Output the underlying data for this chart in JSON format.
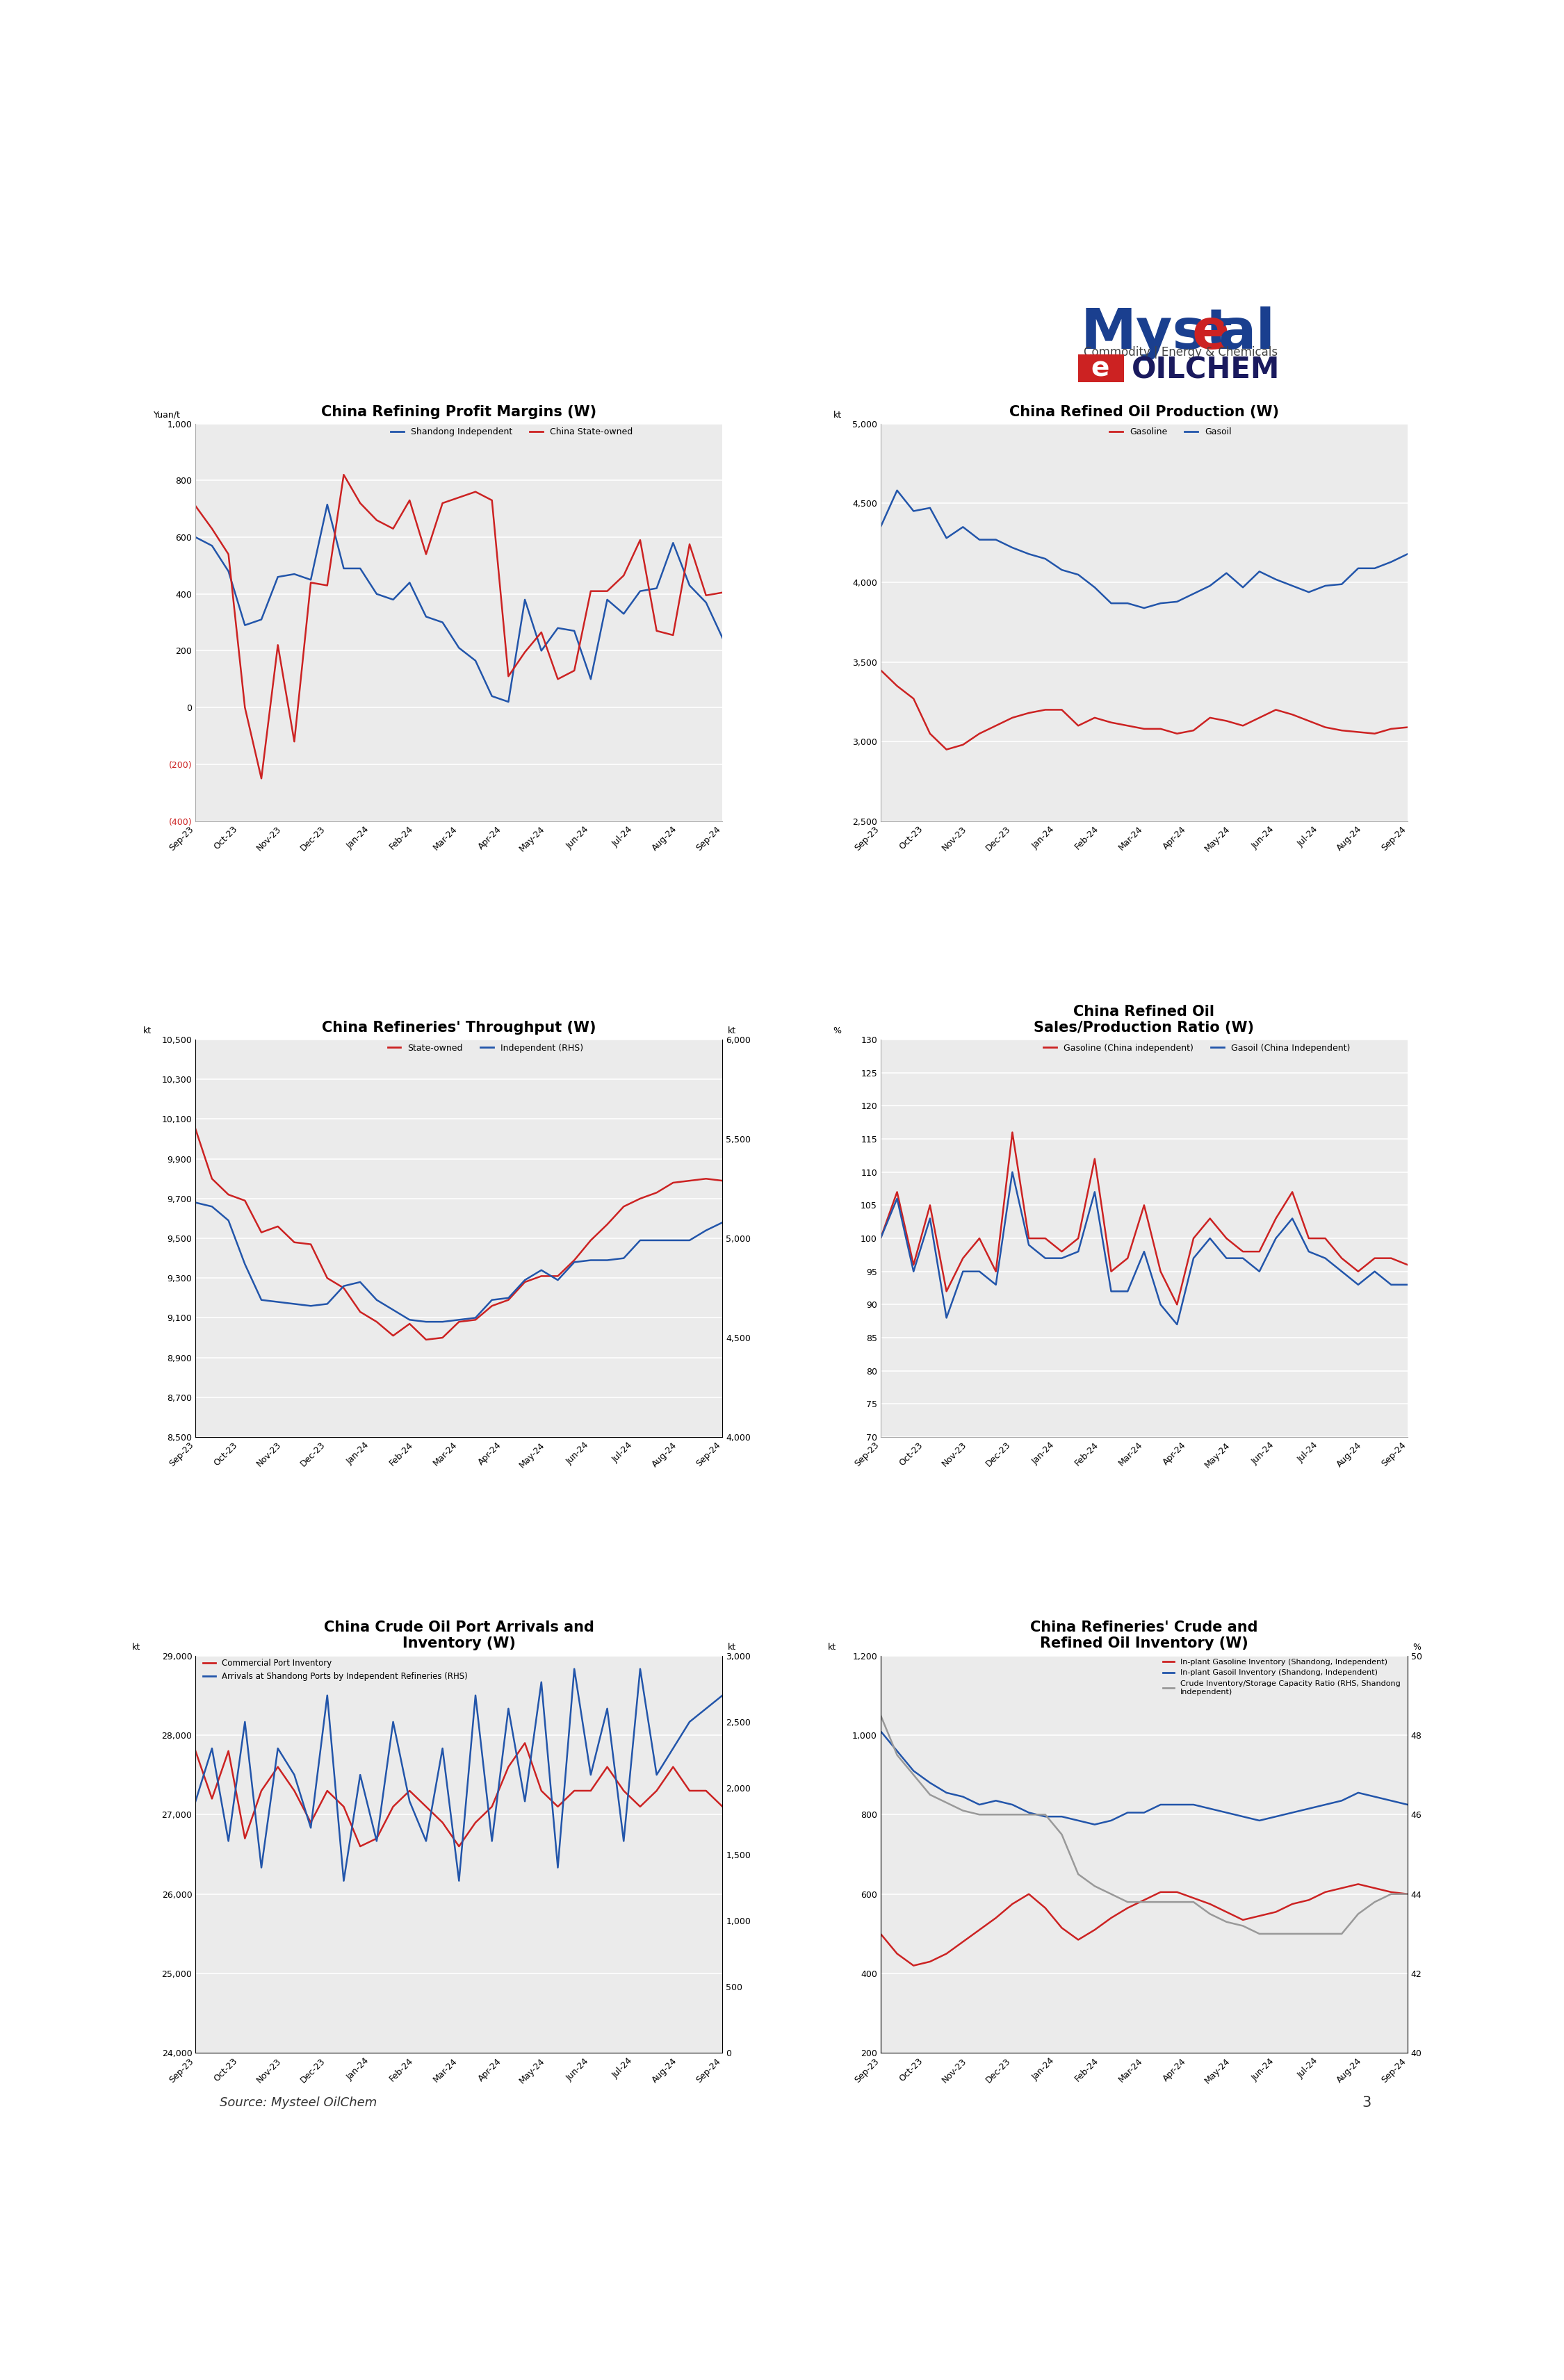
{
  "chart1": {
    "title": "China Refining Profit Margins (W)",
    "ylabel": "Yuan/t",
    "ylim": [
      -400,
      1000
    ],
    "yticks": [
      -400,
      -200,
      0,
      200,
      400,
      600,
      800,
      1000
    ],
    "ytick_labels": [
      "(400)",
      "(200)",
      "0",
      "200",
      "400",
      "600",
      "800",
      "1,000"
    ],
    "series": {
      "Shandong Independent": {
        "color": "#2255AA",
        "data": [
          600,
          570,
          480,
          290,
          310,
          460,
          470,
          450,
          715,
          490,
          490,
          400,
          380,
          440,
          320,
          300,
          210,
          165,
          40,
          20,
          380,
          200,
          280,
          270,
          100,
          380,
          330,
          410,
          420,
          580,
          430,
          370,
          245
        ]
      },
      "China State-owned": {
        "color": "#CC2222",
        "data": [
          710,
          630,
          540,
          0,
          -250,
          220,
          -120,
          440,
          430,
          820,
          720,
          660,
          630,
          730,
          540,
          720,
          740,
          760,
          730,
          110,
          195,
          265,
          100,
          130,
          410,
          410,
          465,
          590,
          270,
          255,
          575,
          395,
          405
        ]
      }
    },
    "x_labels": [
      "Sep-23",
      "Oct-23",
      "Nov-23",
      "Dec-23",
      "Jan-24",
      "Feb-24",
      "Mar-24",
      "Apr-24",
      "May-24",
      "Jun-24",
      "Jul-24",
      "Aug-24",
      "Sep-24"
    ],
    "n_points": 33
  },
  "chart2": {
    "title": "China Refined Oil Production (W)",
    "ylabel": "kt",
    "ylim": [
      2500,
      5000
    ],
    "yticks": [
      2500,
      3000,
      3500,
      4000,
      4500,
      5000
    ],
    "ytick_labels": [
      "2,500",
      "3,000",
      "3,500",
      "4,000",
      "4,500",
      "5,000"
    ],
    "series": {
      "Gasoline": {
        "color": "#CC2222",
        "data": [
          3450,
          3350,
          3270,
          3050,
          2950,
          2980,
          3050,
          3100,
          3150,
          3180,
          3200,
          3200,
          3100,
          3150,
          3120,
          3100,
          3080,
          3080,
          3050,
          3070,
          3150,
          3130,
          3100,
          3150,
          3200,
          3170,
          3130,
          3090,
          3070,
          3060,
          3050,
          3080,
          3090
        ]
      },
      "Gasoil": {
        "color": "#2255AA",
        "data": [
          4350,
          4580,
          4450,
          4470,
          4280,
          4350,
          4270,
          4270,
          4220,
          4180,
          4150,
          4080,
          4050,
          3970,
          3870,
          3870,
          3840,
          3870,
          3880,
          3930,
          3980,
          4060,
          3970,
          4070,
          4020,
          3980,
          3940,
          3980,
          3990,
          4090,
          4090,
          4130,
          4180
        ]
      }
    },
    "x_labels": [
      "Sep-23",
      "Oct-23",
      "Nov-23",
      "Dec-23",
      "Jan-24",
      "Feb-24",
      "Mar-24",
      "Apr-24",
      "May-24",
      "Jun-24",
      "Jul-24",
      "Aug-24",
      "Sep-24"
    ],
    "n_points": 33
  },
  "chart3": {
    "title": "China Refineries' Throughput (W)",
    "ylabel_left": "kt",
    "ylabel_right": "kt",
    "ylim_left": [
      8500,
      10500
    ],
    "ylim_right": [
      4000,
      6000
    ],
    "yticks_left": [
      8500,
      8700,
      8900,
      9100,
      9300,
      9500,
      9700,
      9900,
      10100,
      10300,
      10500
    ],
    "ytick_labels_left": [
      "8,500",
      "8,700",
      "8,900",
      "9,100",
      "9,300",
      "9,500",
      "9,700",
      "9,900",
      "10,100",
      "10,300",
      "10,500"
    ],
    "yticks_right": [
      4000,
      4500,
      5000,
      5500,
      6000
    ],
    "ytick_labels_right": [
      "4,000",
      "4,500",
      "5,000",
      "5,500",
      "6,000"
    ],
    "series": {
      "State-owned": {
        "color": "#CC2222",
        "data": [
          10050,
          9800,
          9720,
          9690,
          9530,
          9560,
          9480,
          9470,
          9300,
          9250,
          9130,
          9080,
          9010,
          9070,
          8990,
          9000,
          9080,
          9090,
          9160,
          9190,
          9280,
          9310,
          9310,
          9390,
          9490,
          9570,
          9660,
          9700,
          9730,
          9780,
          9790,
          9800,
          9790
        ]
      },
      "Independent (RHS)": {
        "color": "#2255AA",
        "data": [
          5180,
          5160,
          5090,
          4870,
          4690,
          4680,
          4670,
          4660,
          4670,
          4760,
          4780,
          4690,
          4640,
          4590,
          4580,
          4580,
          4590,
          4600,
          4690,
          4700,
          4790,
          4840,
          4790,
          4880,
          4890,
          4890,
          4900,
          4990,
          4990,
          4990,
          4990,
          5040,
          5080
        ]
      }
    },
    "x_labels": [
      "Sep-23",
      "Oct-23",
      "Nov-23",
      "Dec-23",
      "Jan-24",
      "Feb-24",
      "Mar-24",
      "Apr-24",
      "May-24",
      "Jun-24",
      "Jul-24",
      "Aug-24",
      "Sep-24"
    ],
    "n_points": 33
  },
  "chart4": {
    "title": "China Refined Oil\nSales/Production Ratio (W)",
    "ylabel": "%",
    "ylim": [
      70,
      130
    ],
    "yticks": [
      70,
      75,
      80,
      85,
      90,
      95,
      100,
      105,
      110,
      115,
      120,
      125,
      130
    ],
    "ytick_labels": [
      "70",
      "75",
      "80",
      "85",
      "90",
      "95",
      "100",
      "105",
      "110",
      "115",
      "120",
      "125",
      "130"
    ],
    "series": {
      "Gasoline (China independent)": {
        "color": "#CC2222",
        "data": [
          100,
          107,
          96,
          105,
          92,
          97,
          100,
          95,
          116,
          100,
          100,
          98,
          100,
          112,
          95,
          97,
          105,
          95,
          90,
          100,
          103,
          100,
          98,
          98,
          103,
          107,
          100,
          100,
          97,
          95,
          97,
          97,
          96
        ]
      },
      "Gasoil (China Independent)": {
        "color": "#2255AA",
        "data": [
          100,
          106,
          95,
          103,
          88,
          95,
          95,
          93,
          110,
          99,
          97,
          97,
          98,
          107,
          92,
          92,
          98,
          90,
          87,
          97,
          100,
          97,
          97,
          95,
          100,
          103,
          98,
          97,
          95,
          93,
          95,
          93,
          93
        ]
      }
    },
    "x_labels": [
      "Sep-23",
      "Oct-23",
      "Nov-23",
      "Dec-23",
      "Jan-24",
      "Feb-24",
      "Mar-24",
      "Apr-24",
      "May-24",
      "Jun-24",
      "Jul-24",
      "Aug-24",
      "Sep-24"
    ],
    "n_points": 33
  },
  "chart5": {
    "title": "China Crude Oil Port Arrivals and\nInventory (W)",
    "ylabel_left": "kt",
    "ylabel_right": "kt",
    "ylim_left": [
      24000,
      29000
    ],
    "ylim_right": [
      0,
      3000
    ],
    "yticks_left": [
      24000,
      25000,
      26000,
      27000,
      28000,
      29000
    ],
    "ytick_labels_left": [
      "24,000",
      "25,000",
      "26,000",
      "27,000",
      "28,000",
      "29,000"
    ],
    "yticks_right": [
      0,
      500,
      1000,
      1500,
      2000,
      2500,
      3000
    ],
    "ytick_labels_right": [
      "0",
      "500",
      "1,000",
      "1,500",
      "2,000",
      "2,500",
      "3,000"
    ],
    "series": {
      "Commercial Port Inventory": {
        "color": "#CC2222",
        "data": [
          27800,
          27200,
          27800,
          26700,
          27300,
          27600,
          27300,
          26900,
          27300,
          27100,
          26600,
          26700,
          27100,
          27300,
          27100,
          26900,
          26600,
          26900,
          27100,
          27600,
          27900,
          27300,
          27100,
          27300,
          27300,
          27600,
          27300,
          27100,
          27300,
          27600,
          27300,
          27300,
          27100
        ]
      },
      "Arrivals at Shandong Ports by Independent Refineries (RHS)": {
        "color": "#2255AA",
        "data": [
          1900,
          2300,
          1600,
          2500,
          1400,
          2300,
          2100,
          1700,
          2700,
          1300,
          2100,
          1600,
          2500,
          1900,
          1600,
          2300,
          1300,
          2700,
          1600,
          2600,
          1900,
          2800,
          1400,
          2900,
          2100,
          2600,
          1600,
          2900,
          2100,
          2300,
          2500,
          2600,
          2700
        ]
      }
    },
    "x_labels": [
      "Sep-23",
      "Oct-23",
      "Nov-23",
      "Dec-23",
      "Jan-24",
      "Feb-24",
      "Mar-24",
      "Apr-24",
      "May-24",
      "Jun-24",
      "Jul-24",
      "Aug-24",
      "Sep-24"
    ],
    "n_points": 33
  },
  "chart6": {
    "title": "China Refineries' Crude and\nRefined Oil Inventory (W)",
    "ylabel_left": "kt",
    "ylabel_right": "%",
    "ylim_left": [
      200,
      1200
    ],
    "ylim_right": [
      40,
      50
    ],
    "yticks_left": [
      200,
      400,
      600,
      800,
      1000,
      1200
    ],
    "ytick_labels_left": [
      "200",
      "400",
      "600",
      "800",
      "1,000",
      "1,200"
    ],
    "yticks_right": [
      40,
      42,
      44,
      46,
      48,
      50
    ],
    "ytick_labels_right": [
      "40",
      "42",
      "44",
      "46",
      "48",
      "50"
    ],
    "series": {
      "In-plant Gasoline Inventory (Shandong, Independent)": {
        "color": "#CC2222",
        "data": [
          500,
          450,
          420,
          430,
          450,
          480,
          510,
          540,
          575,
          600,
          565,
          515,
          485,
          510,
          540,
          565,
          585,
          605,
          605,
          590,
          575,
          555,
          535,
          545,
          555,
          575,
          585,
          605,
          615,
          625,
          615,
          605,
          600
        ]
      },
      "In-plant Gasoil Inventory (Shandong, Independent)": {
        "color": "#2255AA",
        "data": [
          1010,
          960,
          910,
          880,
          855,
          845,
          825,
          835,
          825,
          805,
          795,
          795,
          785,
          775,
          785,
          805,
          805,
          825,
          825,
          825,
          815,
          805,
          795,
          785,
          795,
          805,
          815,
          825,
          835,
          855,
          845,
          835,
          825
        ]
      },
      "Crude Inventory/Storage Capacity Ratio (RHS, Shandong Independent)": {
        "color": "#999999",
        "data": [
          48.5,
          47.5,
          47.0,
          46.5,
          46.3,
          46.1,
          46.0,
          46.0,
          46.0,
          46.0,
          46.0,
          45.5,
          44.5,
          44.2,
          44.0,
          43.8,
          43.8,
          43.8,
          43.8,
          43.8,
          43.5,
          43.3,
          43.2,
          43.0,
          43.0,
          43.0,
          43.0,
          43.0,
          43.0,
          43.5,
          43.8,
          44.0,
          44.0
        ]
      }
    },
    "x_labels": [
      "Sep-23",
      "Oct-23",
      "Nov-23",
      "Dec-23",
      "Jan-24",
      "Feb-24",
      "Mar-24",
      "Apr-24",
      "May-24",
      "Jun-24",
      "Jul-24",
      "Aug-24",
      "Sep-24"
    ],
    "n_points": 33
  },
  "background_color": "#EBEBEB",
  "source_text": "Source: Mysteel OilChem",
  "page_number": "3"
}
